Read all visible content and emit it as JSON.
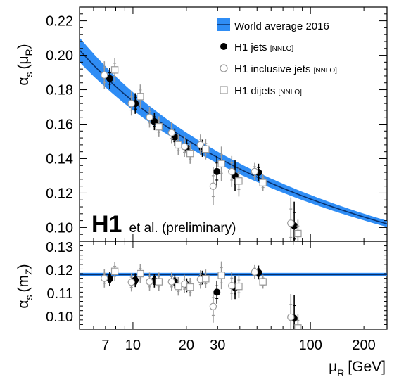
{
  "chart_data": [
    {
      "type": "scatter",
      "panel": "top",
      "xscale": "log",
      "xlim": [
        5.0,
        270.0
      ],
      "ylim": [
        0.092,
        0.228
      ],
      "ylabel_main": "α",
      "ylabel_sub": "s",
      "ylabel_arg": "(μ",
      "ylabel_arg_sub": "R",
      "ylabel_arg_close": ")",
      "y_ticks": [
        0.1,
        0.12,
        0.14,
        0.16,
        0.18,
        0.2,
        0.22
      ],
      "y_tick_labels": [
        "0.10",
        "0.12",
        "0.14",
        "0.16",
        "0.18",
        "0.20",
        "0.22"
      ],
      "world_average": {
        "alpha_s_mz": 0.1181,
        "band_halfwidth_mz": 0.0011,
        "color": "#2f8df5",
        "line_color": "#08306b"
      },
      "series": [
        {
          "name": "H1 jets",
          "name_suffix": "[NNLO]",
          "marker": "filled-circle",
          "color": "#000000",
          "points": [
            {
              "x": 7.4,
              "y": 0.1865,
              "err": 0.006
            },
            {
              "x": 10.3,
              "y": 0.172,
              "err": 0.006
            },
            {
              "x": 13.2,
              "y": 0.1615,
              "err": 0.005
            },
            {
              "x": 17.2,
              "y": 0.1525,
              "err": 0.005
            },
            {
              "x": 20.1,
              "y": 0.146,
              "err": 0.005
            },
            {
              "x": 24.6,
              "y": 0.146,
              "err": 0.005
            },
            {
              "x": 29.7,
              "y": 0.1325,
              "err": 0.009
            },
            {
              "x": 37.6,
              "y": 0.13,
              "err": 0.009
            },
            {
              "x": 51.0,
              "y": 0.132,
              "err": 0.005
            },
            {
              "x": 81.0,
              "y": 0.101,
              "err": 0.014
            }
          ]
        },
        {
          "name": "H1 inclusive jets",
          "name_suffix": "[NNLO]",
          "marker": "open-circle",
          "color": "#9a9a9a",
          "points": [
            {
              "x": 6.9,
              "y": 0.1885,
              "err": 0.008
            },
            {
              "x": 9.8,
              "y": 0.172,
              "err": 0.007
            },
            {
              "x": 12.4,
              "y": 0.164,
              "err": 0.006
            },
            {
              "x": 16.5,
              "y": 0.155,
              "err": 0.006
            },
            {
              "x": 19.5,
              "y": 0.147,
              "err": 0.006
            },
            {
              "x": 24.0,
              "y": 0.148,
              "err": 0.006
            },
            {
              "x": 28.3,
              "y": 0.124,
              "err": 0.011
            },
            {
              "x": 36.0,
              "y": 0.1325,
              "err": 0.009
            },
            {
              "x": 48.5,
              "y": 0.1325,
              "err": 0.005
            },
            {
              "x": 77.5,
              "y": 0.1025,
              "err": 0.015
            }
          ]
        },
        {
          "name": "H1 dijets",
          "name_suffix": "[NNLO]",
          "marker": "open-square",
          "color": "#9a9a9a",
          "points": [
            {
              "x": 7.9,
              "y": 0.1915,
              "err": 0.007
            },
            {
              "x": 11.0,
              "y": 0.176,
              "err": 0.007
            },
            {
              "x": 14.0,
              "y": 0.1585,
              "err": 0.006
            },
            {
              "x": 18.0,
              "y": 0.148,
              "err": 0.006
            },
            {
              "x": 21.0,
              "y": 0.143,
              "err": 0.006
            },
            {
              "x": 25.7,
              "y": 0.1455,
              "err": 0.006
            },
            {
              "x": 31.5,
              "y": 0.137,
              "err": 0.01
            },
            {
              "x": 39.5,
              "y": 0.127,
              "err": 0.009
            },
            {
              "x": 54.0,
              "y": 0.126,
              "err": 0.005
            },
            {
              "x": 85.0,
              "y": 0.0965,
              "err": 0.008
            }
          ]
        }
      ],
      "annotation_bold": "H1",
      "annotation_rest": "et al. (preliminary)"
    },
    {
      "type": "scatter",
      "panel": "bottom",
      "xscale": "log",
      "xlim": [
        5.0,
        270.0
      ],
      "ylim": [
        0.0945,
        0.1325
      ],
      "ylabel_main": "α",
      "ylabel_sub": "s",
      "ylabel_arg": "(m",
      "ylabel_arg_sub": "Z",
      "ylabel_arg_close": ")",
      "y_ticks": [
        0.1,
        0.11,
        0.12,
        0.13
      ],
      "y_tick_labels": [
        "0.10",
        "0.11",
        "0.12",
        "0.13"
      ],
      "x_ticks": [
        7,
        10,
        20,
        30,
        100,
        200
      ],
      "x_tick_labels": [
        "7",
        "10",
        "20",
        "30",
        "100",
        "200"
      ],
      "xlabel_main": "μ",
      "xlabel_sub": "R",
      "xlabel_unit": "[GeV]",
      "world_average": {
        "value": 0.1181,
        "halfwidth": 0.0011
      },
      "series": [
        {
          "name": "H1 jets",
          "marker": "filled-circle",
          "points": [
            {
              "x": 7.4,
              "y": 0.1163,
              "err": 0.003
            },
            {
              "x": 10.3,
              "y": 0.1157,
              "err": 0.003
            },
            {
              "x": 13.2,
              "y": 0.1155,
              "err": 0.003
            },
            {
              "x": 17.2,
              "y": 0.115,
              "err": 0.003
            },
            {
              "x": 20.1,
              "y": 0.1135,
              "err": 0.003
            },
            {
              "x": 24.6,
              "y": 0.1168,
              "err": 0.003
            },
            {
              "x": 29.7,
              "y": 0.1105,
              "err": 0.005
            },
            {
              "x": 37.6,
              "y": 0.1125,
              "err": 0.005
            },
            {
              "x": 51.0,
              "y": 0.119,
              "err": 0.003
            },
            {
              "x": 81.0,
              "y": 0.0992,
              "err": 0.01
            }
          ]
        },
        {
          "name": "H1 inclusive jets",
          "marker": "open-circle",
          "points": [
            {
              "x": 6.9,
              "y": 0.1165,
              "err": 0.004
            },
            {
              "x": 9.8,
              "y": 0.1148,
              "err": 0.004
            },
            {
              "x": 12.4,
              "y": 0.115,
              "err": 0.004
            },
            {
              "x": 16.5,
              "y": 0.115,
              "err": 0.004
            },
            {
              "x": 19.5,
              "y": 0.114,
              "err": 0.004
            },
            {
              "x": 24.0,
              "y": 0.116,
              "err": 0.004
            },
            {
              "x": 28.3,
              "y": 0.1043,
              "err": 0.007
            },
            {
              "x": 36.0,
              "y": 0.1133,
              "err": 0.006
            },
            {
              "x": 48.5,
              "y": 0.1192,
              "err": 0.003
            },
            {
              "x": 77.5,
              "y": 0.0997,
              "err": 0.01
            }
          ]
        },
        {
          "name": "H1 dijets",
          "marker": "open-square",
          "points": [
            {
              "x": 7.9,
              "y": 0.1195,
              "err": 0.004
            },
            {
              "x": 11.0,
              "y": 0.1185,
              "err": 0.004
            },
            {
              "x": 14.0,
              "y": 0.115,
              "err": 0.004
            },
            {
              "x": 18.0,
              "y": 0.113,
              "err": 0.004
            },
            {
              "x": 21.0,
              "y": 0.1127,
              "err": 0.004
            },
            {
              "x": 25.7,
              "y": 0.1163,
              "err": 0.004
            },
            {
              "x": 31.5,
              "y": 0.1178,
              "err": 0.006
            },
            {
              "x": 39.5,
              "y": 0.113,
              "err": 0.005
            },
            {
              "x": 54.0,
              "y": 0.115,
              "err": 0.003
            },
            {
              "x": 85.0,
              "y": 0.095,
              "err": 0.006
            }
          ]
        }
      ]
    }
  ],
  "legend": {
    "placement": "top-right",
    "items": [
      {
        "label": "World average 2016",
        "suffix": "",
        "marker": "band"
      },
      {
        "label": "H1 jets",
        "suffix": "[NNLO]",
        "marker": "filled-circle"
      },
      {
        "label": "H1 inclusive jets",
        "suffix": "[NNLO]",
        "marker": "open-circle"
      },
      {
        "label": "H1 dijets",
        "suffix": "[NNLO]",
        "marker": "open-square"
      }
    ]
  }
}
